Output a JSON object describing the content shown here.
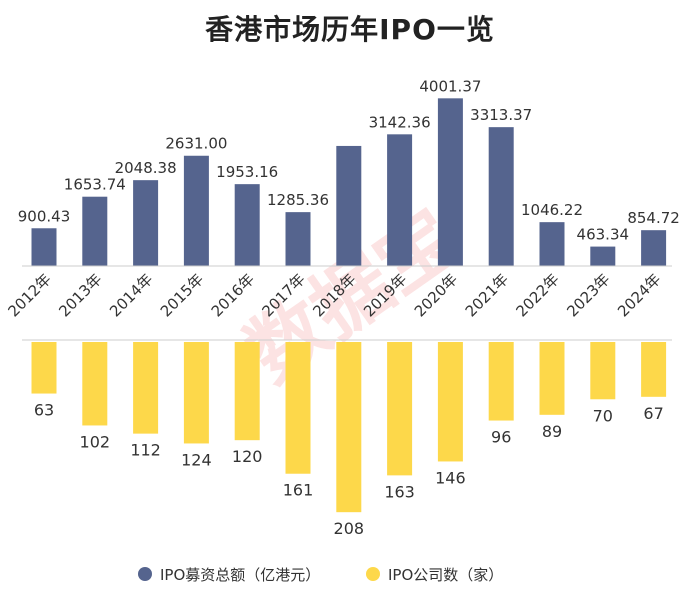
{
  "chart_data": {
    "type": "bar",
    "title": "香港市场历年IPO一览",
    "categories": [
      "2012年",
      "2013年",
      "2014年",
      "2015年",
      "2016年",
      "2017年",
      "2018年",
      "2019年",
      "2020年",
      "2021年",
      "2022年",
      "2023年",
      "2024年"
    ],
    "series": [
      {
        "name": "IPO募资总额（亿港元）",
        "values": [
          900.43,
          1653.74,
          2048.38,
          2631.0,
          1953.16,
          1285.36,
          2865.0,
          3142.36,
          4001.37,
          3313.37,
          1046.22,
          463.34,
          854.72
        ],
        "labels": [
          "900.43",
          "1653.74",
          "2048.38",
          "2631.00",
          "1953.16",
          "1285.36",
          "",
          "3142.36",
          "4001.37",
          "3313.37",
          "1046.22",
          "463.34",
          "854.72"
        ],
        "color": "#55648e",
        "ylim": [
          0,
          4200
        ]
      },
      {
        "name": "IPO公司数（家）",
        "values": [
          63,
          102,
          112,
          124,
          120,
          161,
          208,
          163,
          146,
          96,
          89,
          70,
          67
        ],
        "labels": [
          "63",
          "102",
          "112",
          "124",
          "120",
          "161",
          "208",
          "163",
          "146",
          "96",
          "89",
          "70",
          "67"
        ],
        "color": "#fdd84a",
        "ylim": [
          0,
          220
        ]
      }
    ],
    "watermark": "数据宝"
  }
}
